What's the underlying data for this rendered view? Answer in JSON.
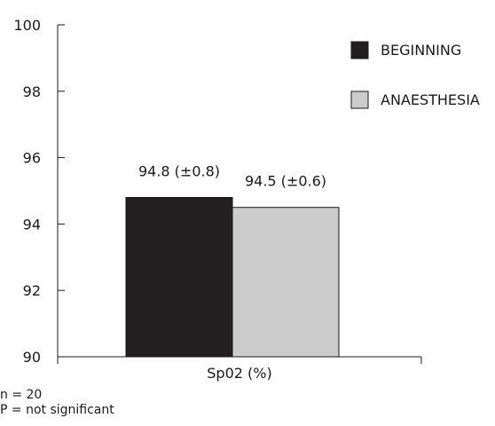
{
  "chart_data": {
    "type": "bar",
    "categories": [
      "Sp02 (%)"
    ],
    "xlabel": "Sp02 (%)",
    "ylabel": "",
    "ylim": [
      90,
      100
    ],
    "yticks": [
      90,
      92,
      94,
      96,
      98,
      100
    ],
    "grid": false,
    "legend_position": "top-right",
    "series": [
      {
        "name": "BEGINNING",
        "values": [
          94.8
        ],
        "label": "94.8 (±0.8)",
        "color": "#231f20"
      },
      {
        "name": "ANAESTHESIA",
        "values": [
          94.5
        ],
        "label": "94.5 (±0.6)",
        "color": "#cccccc"
      }
    ]
  },
  "notes": {
    "n": "n = 20",
    "p": "P = not significant"
  }
}
